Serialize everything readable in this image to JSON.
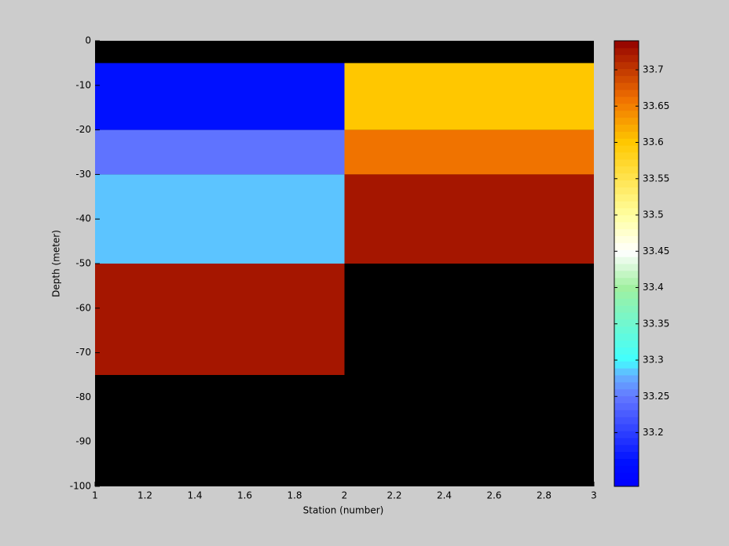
{
  "chart_data": {
    "type": "heatmap",
    "xlabel": "Station (number)",
    "ylabel": "Depth (meter)",
    "x_edges": [
      1,
      2,
      3
    ],
    "y_edges": [
      0,
      -5,
      -20,
      -30,
      -50,
      -75,
      -100
    ],
    "z": [
      [
        null,
        null
      ],
      [
        33.16,
        33.6
      ],
      [
        33.25,
        33.66
      ],
      [
        33.28,
        33.73
      ],
      [
        33.73,
        null
      ],
      [
        null,
        null
      ]
    ],
    "nan_color": "#000000",
    "xlim": [
      1,
      3
    ],
    "ylim": [
      -100,
      0
    ],
    "xticks": [
      1,
      1.2,
      1.4,
      1.6,
      1.8,
      2,
      2.2,
      2.4,
      2.6,
      2.8,
      3
    ],
    "yticks": [
      0,
      -10,
      -20,
      -30,
      -40,
      -50,
      -60,
      -70,
      -80,
      -90,
      -100
    ],
    "clim": [
      33.126,
      33.74
    ],
    "cticks": [
      33.2,
      33.25,
      33.3,
      33.35,
      33.4,
      33.45,
      33.5,
      33.55,
      33.6,
      33.65,
      33.7
    ],
    "colorscale": [
      [
        0,
        "#0000ff"
      ],
      [
        0.055,
        "#0010ff"
      ],
      [
        0.202,
        "#6478ff"
      ],
      [
        0.251,
        "#64b4ff"
      ],
      [
        0.283,
        "#40ffff"
      ],
      [
        0.446,
        "#a0f0a0"
      ],
      [
        0.528,
        "#ffffff"
      ],
      [
        0.609,
        "#ffffa0"
      ],
      [
        0.772,
        "#ffc800"
      ],
      [
        0.87,
        "#f07000"
      ],
      [
        0.984,
        "#a01000"
      ],
      [
        1,
        "#900000"
      ]
    ],
    "colorbar_levels": 64
  }
}
